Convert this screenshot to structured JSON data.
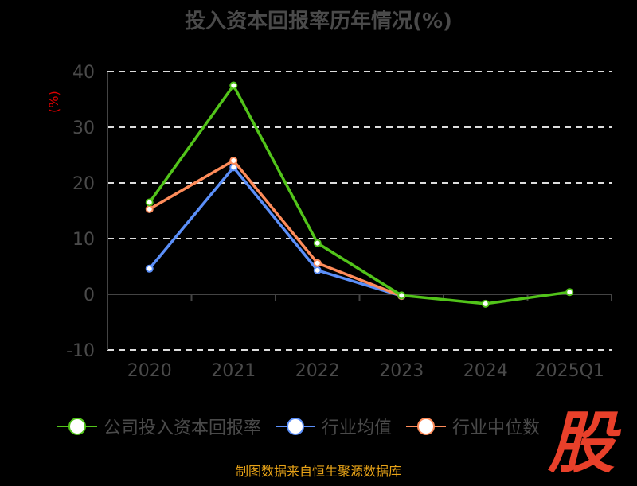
{
  "chart_data": {
    "type": "line",
    "title": "投入资本回报率历年情况(%)",
    "ylabel": "(%)",
    "categories": [
      "2020",
      "2021",
      "2022",
      "2023",
      "2024",
      "2025Q1"
    ],
    "ylim": [
      -10,
      40
    ],
    "yticks": [
      -10,
      0,
      10,
      20,
      30,
      40
    ],
    "grid": true,
    "legend_placement": "bottom",
    "series": [
      {
        "name": "公司投入资本回报率",
        "color": "#52c41a",
        "values": [
          16.5,
          37.5,
          9.2,
          -0.2,
          -1.7,
          0.4
        ]
      },
      {
        "name": "行业均值",
        "color": "#5b8ff9",
        "values": [
          4.6,
          22.8,
          4.3,
          -0.3,
          null,
          null
        ]
      },
      {
        "name": "行业中位数",
        "color": "#ff8c5a",
        "values": [
          15.3,
          24.0,
          5.6,
          -0.3,
          null,
          null
        ]
      }
    ]
  },
  "watermark": "股",
  "source": "制图数据来自恒生聚源数据库"
}
